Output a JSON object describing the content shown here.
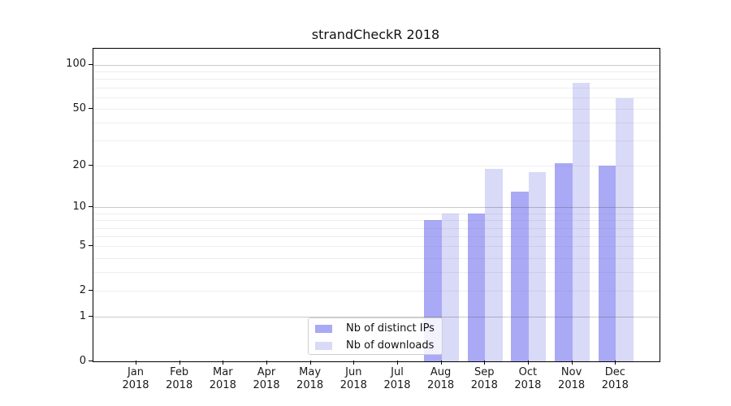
{
  "title": "strandCheckR 2018",
  "chart_data": {
    "type": "bar",
    "title": "strandCheckR 2018",
    "categories": [
      "Jan",
      "Feb",
      "Mar",
      "Apr",
      "May",
      "Jun",
      "Jul",
      "Aug",
      "Sep",
      "Oct",
      "Nov",
      "Dec"
    ],
    "year_label": "2018",
    "series": [
      {
        "name": "Nb of distinct IPs",
        "color": "#a9a9f5",
        "values": [
          0,
          0,
          0,
          0,
          0,
          0,
          0,
          8,
          9,
          13,
          21,
          20
        ]
      },
      {
        "name": "Nb of downloads",
        "color": "#d9d9f8",
        "values": [
          0,
          0,
          0,
          0,
          0,
          0,
          0,
          9,
          19,
          18,
          75,
          59
        ]
      }
    ],
    "yscale": "log1p",
    "ylim": [
      0,
      129
    ],
    "ytick_labels": [
      "100",
      "50",
      "20",
      "10",
      "5",
      "2",
      "1",
      "0"
    ],
    "ytick_values": [
      100,
      50,
      20,
      10,
      5,
      2,
      1,
      0
    ],
    "gridlines_major": [
      1,
      10,
      100
    ],
    "gridlines_minor": [
      2,
      3,
      4,
      5,
      6,
      7,
      8,
      9,
      20,
      30,
      40,
      50,
      60,
      70,
      80,
      90
    ],
    "grid": true,
    "legend_position": "inside lower-center",
    "colors": {
      "major_grid": "#c6c6c6",
      "minor_grid": "#ececec",
      "axis": "#000000"
    }
  }
}
